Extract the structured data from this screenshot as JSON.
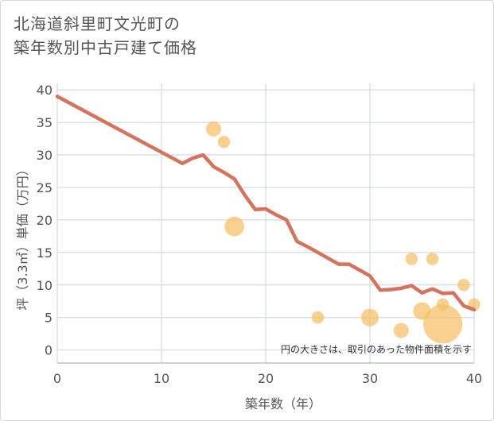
{
  "page": {
    "title_line1": "北海道斜里町文光町の",
    "title_line2": "築年数別中古戸建て価格"
  },
  "chart_data": {
    "type": "scatter+line",
    "xlabel": "築年数（年）",
    "ylabel": "坪（3.3㎡）単価（万円）",
    "xlim": [
      0,
      40
    ],
    "ylim": [
      -2,
      41
    ],
    "xticks": [
      0,
      10,
      20,
      30,
      40
    ],
    "yticks": [
      0,
      5,
      10,
      15,
      20,
      25,
      30,
      35,
      40
    ],
    "note": "円の大きさは、取引のあった物件面積を示す",
    "colors": {
      "line": "#d4735e",
      "bubble": "#f5c06a",
      "grid": "#c8d3e0"
    },
    "trend_line": [
      [
        0,
        39
      ],
      [
        12,
        28.7
      ],
      [
        13,
        29.5
      ],
      [
        14,
        30
      ],
      [
        15,
        28.2
      ],
      [
        16,
        27.3
      ],
      [
        17,
        26.3
      ],
      [
        18,
        23.8
      ],
      [
        19,
        21.6
      ],
      [
        20,
        21.7
      ],
      [
        21,
        20.8
      ],
      [
        22,
        20
      ],
      [
        23,
        16.7
      ],
      [
        24,
        15.9
      ],
      [
        25,
        15
      ],
      [
        26,
        14.1
      ],
      [
        27,
        13.2
      ],
      [
        28,
        13.2
      ],
      [
        29,
        12.3
      ],
      [
        30,
        11.4
      ],
      [
        31,
        9.2
      ],
      [
        32,
        9.3
      ],
      [
        33,
        9.5
      ],
      [
        34,
        9.9
      ],
      [
        35,
        8.8
      ],
      [
        36,
        9.4
      ],
      [
        37,
        8.7
      ],
      [
        38,
        8.8
      ],
      [
        39,
        6.8
      ],
      [
        40,
        6.2
      ]
    ],
    "bubbles": [
      {
        "x": 15,
        "y": 34,
        "size": 3
      },
      {
        "x": 16,
        "y": 32,
        "size": 2
      },
      {
        "x": 17,
        "y": 19,
        "size": 5
      },
      {
        "x": 25,
        "y": 5,
        "size": 2
      },
      {
        "x": 30,
        "y": 5,
        "size": 4
      },
      {
        "x": 33,
        "y": 3,
        "size": 3
      },
      {
        "x": 34,
        "y": 14,
        "size": 2
      },
      {
        "x": 35,
        "y": 6,
        "size": 4
      },
      {
        "x": 36,
        "y": 14,
        "size": 2
      },
      {
        "x": 37,
        "y": 4,
        "size": 20
      },
      {
        "x": 37,
        "y": 7,
        "size": 2
      },
      {
        "x": 39,
        "y": 10,
        "size": 2
      },
      {
        "x": 40,
        "y": 7,
        "size": 2
      }
    ]
  }
}
